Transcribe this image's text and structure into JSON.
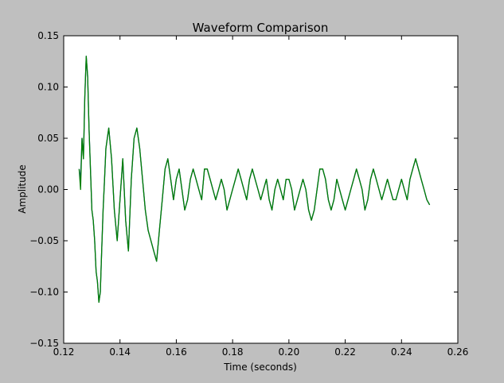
{
  "chart_data": {
    "type": "line",
    "title": "Waveform Comparison",
    "xlabel": "Time (seconds)",
    "ylabel": "Amplitude",
    "xlim": [
      0.12,
      0.26
    ],
    "ylim": [
      -0.15,
      0.15
    ],
    "xticks": [
      0.12,
      0.14,
      0.16,
      0.18,
      0.2,
      0.22,
      0.24,
      0.26
    ],
    "xtick_labels": [
      "0.12",
      "0.14",
      "0.16",
      "0.18",
      "0.20",
      "0.22",
      "0.24",
      "0.26"
    ],
    "yticks": [
      -0.15,
      -0.1,
      -0.05,
      0.0,
      0.05,
      0.1,
      0.15
    ],
    "ytick_labels": [
      "−0.15",
      "−0.10",
      "−0.05",
      "0.00",
      "0.05",
      "0.10",
      "0.15"
    ],
    "grid": false,
    "legend": "none",
    "series": [
      {
        "color": "#1f3fbf",
        "x": [
          0.1255,
          0.126,
          0.1265,
          0.127,
          0.1275,
          0.128,
          0.1285,
          0.129,
          0.1295,
          0.13,
          0.1305,
          0.131,
          0.1315,
          0.132,
          0.1325,
          0.133,
          0.1335,
          0.134,
          0.1345,
          0.135,
          0.1355,
          0.136,
          0.137,
          0.138,
          0.139,
          0.14,
          0.141,
          0.142,
          0.143,
          0.144,
          0.145,
          0.146,
          0.147,
          0.148,
          0.149,
          0.15,
          0.151,
          0.152,
          0.153,
          0.154,
          0.155,
          0.156,
          0.157,
          0.158,
          0.159,
          0.16,
          0.161,
          0.162,
          0.163,
          0.164,
          0.165,
          0.166,
          0.167,
          0.168,
          0.169,
          0.17,
          0.171,
          0.172,
          0.173,
          0.174,
          0.175,
          0.176,
          0.177,
          0.178,
          0.179,
          0.18,
          0.181,
          0.182,
          0.183,
          0.184,
          0.185,
          0.186,
          0.187,
          0.188,
          0.189,
          0.19,
          0.191,
          0.192,
          0.193,
          0.194,
          0.195,
          0.196,
          0.197,
          0.198,
          0.199,
          0.2,
          0.201,
          0.202,
          0.203,
          0.204,
          0.205,
          0.206,
          0.207,
          0.208,
          0.209,
          0.21,
          0.211,
          0.212,
          0.213,
          0.214,
          0.215,
          0.216,
          0.217,
          0.218,
          0.219,
          0.22,
          0.221,
          0.222,
          0.223,
          0.224,
          0.225,
          0.226,
          0.227,
          0.228,
          0.229,
          0.23,
          0.231,
          0.232,
          0.233,
          0.234,
          0.235,
          0.236,
          0.237,
          0.238,
          0.239,
          0.24,
          0.241,
          0.242,
          0.243,
          0.244,
          0.245,
          0.246,
          0.247,
          0.248,
          0.249,
          0.25
        ],
        "y": [
          0.02,
          0.01,
          0.05,
          0.03,
          0.09,
          0.13,
          0.11,
          0.06,
          0.02,
          -0.02,
          -0.03,
          -0.05,
          -0.08,
          -0.09,
          -0.11,
          -0.1,
          -0.06,
          -0.02,
          0.01,
          0.04,
          0.05,
          0.06,
          0.03,
          -0.02,
          -0.05,
          -0.01,
          0.03,
          -0.03,
          -0.06,
          0.01,
          0.05,
          0.06,
          0.04,
          0.01,
          -0.02,
          -0.04,
          -0.05,
          -0.06,
          -0.07,
          -0.04,
          -0.01,
          0.02,
          0.03,
          0.01,
          -0.01,
          0.01,
          0.02,
          0.0,
          -0.02,
          -0.01,
          0.01,
          0.02,
          0.01,
          0.0,
          -0.01,
          0.02,
          0.02,
          0.01,
          0.0,
          -0.01,
          0.0,
          0.01,
          0.0,
          -0.02,
          -0.01,
          0.0,
          0.01,
          0.02,
          0.01,
          0.0,
          -0.01,
          0.01,
          0.02,
          0.01,
          0.0,
          -0.01,
          0.0,
          0.01,
          -0.01,
          -0.02,
          0.0,
          0.01,
          0.0,
          -0.01,
          0.01,
          0.01,
          0.0,
          -0.02,
          -0.01,
          0.0,
          0.01,
          0.0,
          -0.02,
          -0.03,
          -0.02,
          0.0,
          0.02,
          0.02,
          0.01,
          -0.01,
          -0.02,
          -0.01,
          0.01,
          0.0,
          -0.01,
          -0.02,
          -0.01,
          0.0,
          0.01,
          0.02,
          0.01,
          0.0,
          -0.02,
          -0.01,
          0.01,
          0.02,
          0.01,
          0.0,
          -0.01,
          0.0,
          0.01,
          0.0,
          -0.01,
          -0.01,
          0.0,
          0.01,
          0.0,
          -0.01,
          0.01,
          0.02,
          0.03,
          0.02,
          0.01,
          0.0,
          -0.01,
          -0.015
        ]
      },
      {
        "color": "#007f00",
        "x": [
          0.1255,
          0.126,
          0.1265,
          0.127,
          0.1275,
          0.128,
          0.1285,
          0.129,
          0.1295,
          0.13,
          0.1305,
          0.131,
          0.1315,
          0.132,
          0.1325,
          0.133,
          0.1335,
          0.134,
          0.1345,
          0.135,
          0.1355,
          0.136,
          0.137,
          0.138,
          0.139,
          0.14,
          0.141,
          0.142,
          0.143,
          0.144,
          0.145,
          0.146,
          0.147,
          0.148,
          0.149,
          0.15,
          0.151,
          0.152,
          0.153,
          0.154,
          0.155,
          0.156,
          0.157,
          0.158,
          0.159,
          0.16,
          0.161,
          0.162,
          0.163,
          0.164,
          0.165,
          0.166,
          0.167,
          0.168,
          0.169,
          0.17,
          0.171,
          0.172,
          0.173,
          0.174,
          0.175,
          0.176,
          0.177,
          0.178,
          0.179,
          0.18,
          0.181,
          0.182,
          0.183,
          0.184,
          0.185,
          0.186,
          0.187,
          0.188,
          0.189,
          0.19,
          0.191,
          0.192,
          0.193,
          0.194,
          0.195,
          0.196,
          0.197,
          0.198,
          0.199,
          0.2,
          0.201,
          0.202,
          0.203,
          0.204,
          0.205,
          0.206,
          0.207,
          0.208,
          0.209,
          0.21,
          0.211,
          0.212,
          0.213,
          0.214,
          0.215,
          0.216,
          0.217,
          0.218,
          0.219,
          0.22,
          0.221,
          0.222,
          0.223,
          0.224,
          0.225,
          0.226,
          0.227,
          0.228,
          0.229,
          0.23,
          0.231,
          0.232,
          0.233,
          0.234,
          0.235,
          0.236,
          0.237,
          0.238,
          0.239,
          0.24,
          0.241,
          0.242,
          0.243,
          0.244,
          0.245,
          0.246,
          0.247,
          0.248,
          0.249,
          0.25
        ],
        "y": [
          0.02,
          0.0,
          0.05,
          0.03,
          0.09,
          0.13,
          0.11,
          0.06,
          0.02,
          -0.02,
          -0.03,
          -0.05,
          -0.08,
          -0.09,
          -0.11,
          -0.1,
          -0.06,
          -0.02,
          0.01,
          0.04,
          0.05,
          0.06,
          0.03,
          -0.02,
          -0.05,
          -0.01,
          0.03,
          -0.03,
          -0.06,
          0.01,
          0.05,
          0.06,
          0.04,
          0.01,
          -0.02,
          -0.04,
          -0.05,
          -0.06,
          -0.07,
          -0.04,
          -0.01,
          0.02,
          0.03,
          0.01,
          -0.01,
          0.01,
          0.02,
          0.0,
          -0.02,
          -0.01,
          0.01,
          0.02,
          0.01,
          0.0,
          -0.01,
          0.02,
          0.02,
          0.01,
          0.0,
          -0.01,
          0.0,
          0.01,
          0.0,
          -0.02,
          -0.01,
          0.0,
          0.01,
          0.02,
          0.01,
          0.0,
          -0.01,
          0.01,
          0.02,
          0.01,
          0.0,
          -0.01,
          0.0,
          0.01,
          -0.01,
          -0.02,
          0.0,
          0.01,
          0.0,
          -0.01,
          0.01,
          0.01,
          0.0,
          -0.02,
          -0.01,
          0.0,
          0.01,
          0.0,
          -0.02,
          -0.03,
          -0.02,
          0.0,
          0.02,
          0.02,
          0.01,
          -0.01,
          -0.02,
          -0.01,
          0.01,
          0.0,
          -0.01,
          -0.02,
          -0.01,
          0.0,
          0.01,
          0.02,
          0.01,
          0.0,
          -0.02,
          -0.01,
          0.01,
          0.02,
          0.01,
          0.0,
          -0.01,
          0.0,
          0.01,
          0.0,
          -0.01,
          -0.01,
          0.0,
          0.01,
          0.0,
          -0.01,
          0.01,
          0.02,
          0.03,
          0.02,
          0.01,
          0.0,
          -0.01,
          -0.015
        ]
      }
    ]
  }
}
